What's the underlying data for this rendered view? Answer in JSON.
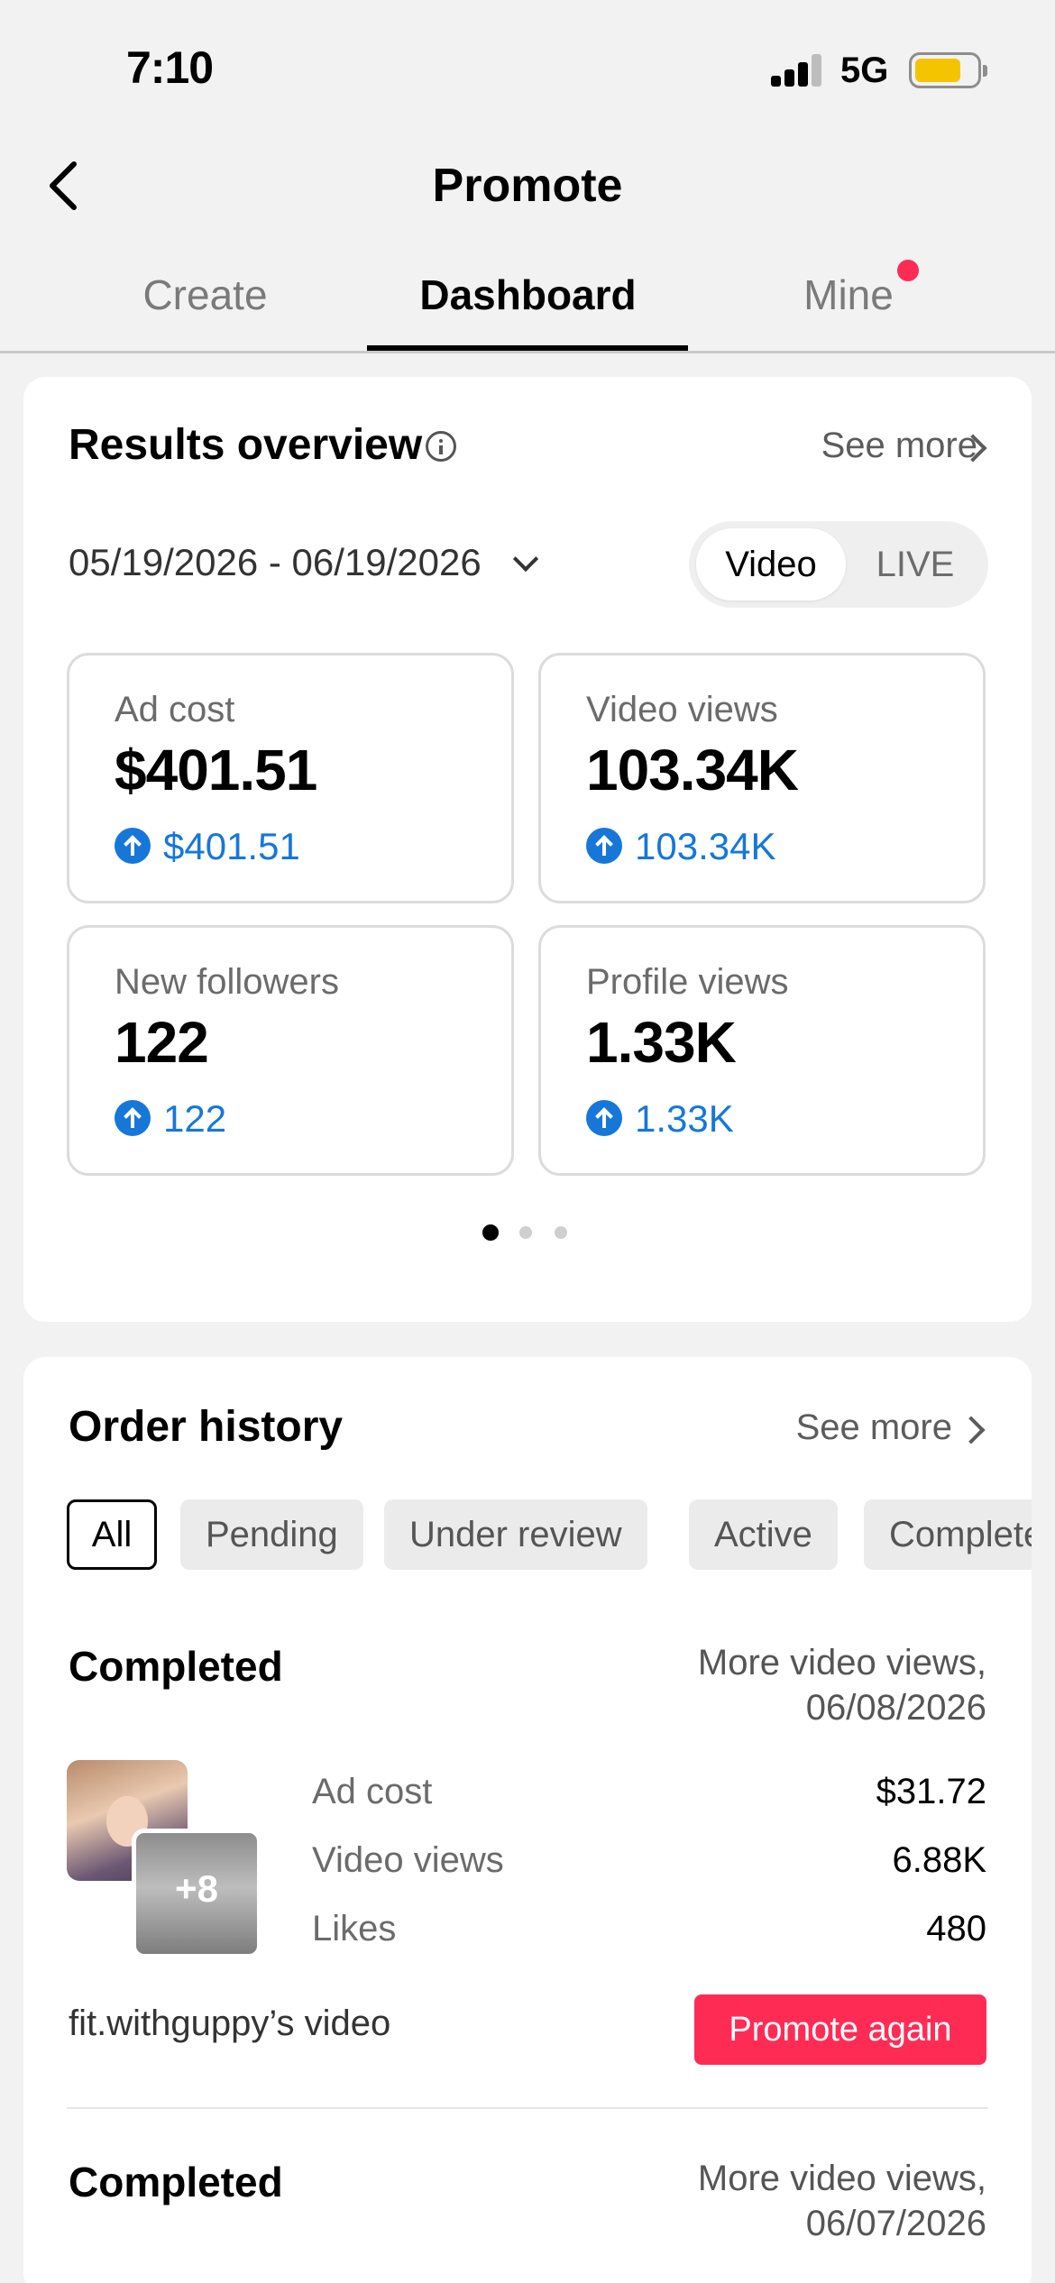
{
  "status_bar": {
    "time": "7:10",
    "network": "5G"
  },
  "header": {
    "title": "Promote"
  },
  "tabs": [
    {
      "label": "Create"
    },
    {
      "label": "Dashboard"
    },
    {
      "label": "Mine"
    }
  ],
  "results": {
    "title": "Results overview",
    "see_more": "See more",
    "date_range": "05/19/2026 - 06/19/2026",
    "toggle": {
      "video": "Video",
      "live": "LIVE"
    },
    "metrics": [
      {
        "label": "Ad cost",
        "value": "$401.51",
        "change": "$401.51"
      },
      {
        "label": "Video views",
        "value": "103.34K",
        "change": "103.34K"
      },
      {
        "label": "New followers",
        "value": "122",
        "change": "122"
      },
      {
        "label": "Profile views",
        "value": "1.33K",
        "change": "1.33K"
      }
    ]
  },
  "orders": {
    "title": "Order history",
    "see_more": "See more",
    "filters": [
      "All",
      "Pending",
      "Under review",
      "Active",
      "Completed"
    ],
    "items": [
      {
        "status": "Completed",
        "meta_line1": "More video views,",
        "meta_line2": "06/08/2026",
        "thumb_count": "+8",
        "stats": [
          {
            "label": "Ad cost",
            "value": "$31.72"
          },
          {
            "label": "Video views",
            "value": "6.88K"
          },
          {
            "label": "Likes",
            "value": "480"
          }
        ],
        "owner": "fit.withguppy’s video",
        "action": "Promote again"
      },
      {
        "status": "Completed",
        "meta_line1": "More video views,",
        "meta_line2": "06/07/2026"
      }
    ]
  },
  "colors": {
    "accent": "#fe2c55",
    "positive": "#1677d9",
    "battery": "#f5c400"
  }
}
